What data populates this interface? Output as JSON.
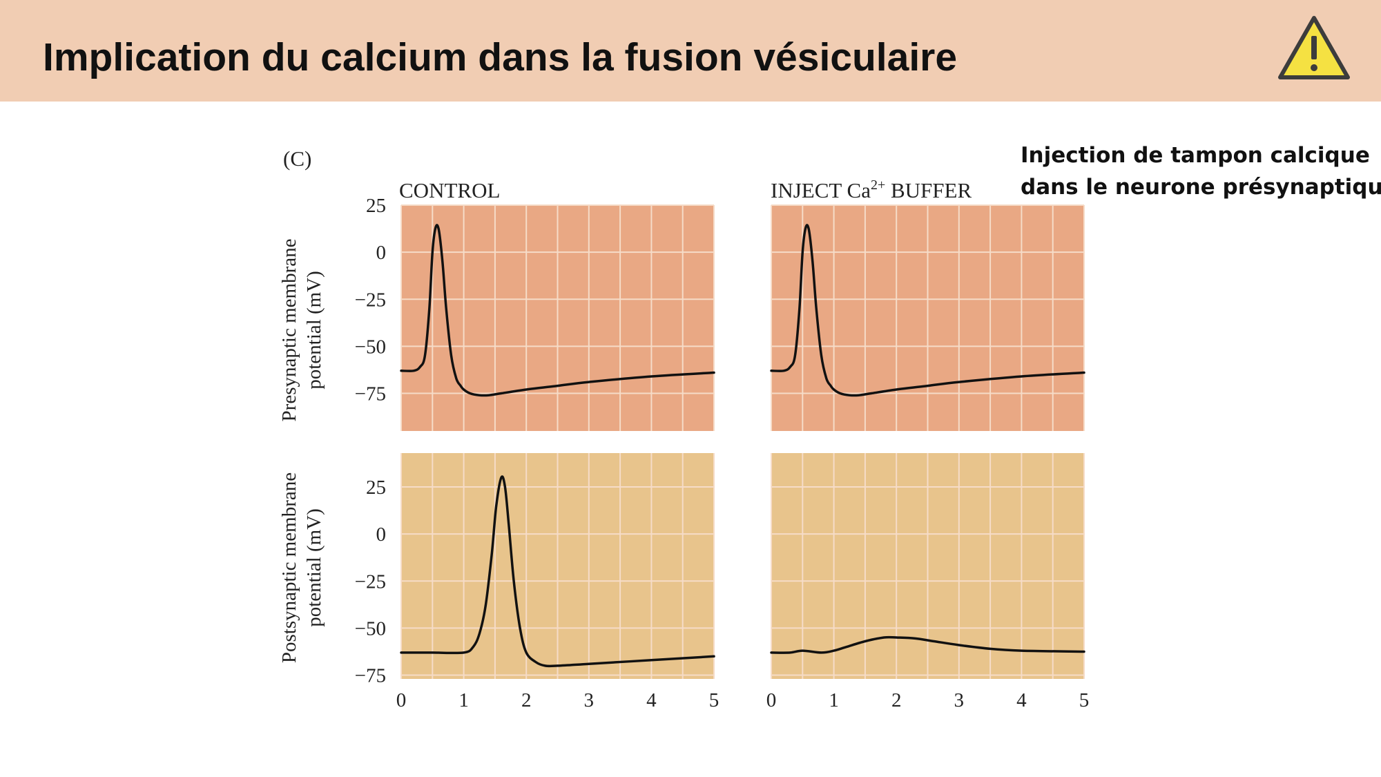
{
  "slide": {
    "title": "Implication du calcium dans la fusion vésiculaire",
    "annotation_line1": "Injection de tampon calcique",
    "annotation_line2": "dans le neurone présynaptique",
    "warning_icon": "warning-triangle-icon"
  },
  "chart_data": {
    "type": "line",
    "panel_label": "(C)",
    "columns": [
      {
        "title": "CONTROL",
        "title_base": "CONTROL",
        "title_sup": "",
        "title_tail": ""
      },
      {
        "title": "INJECT Ca2+ BUFFER",
        "title_base": "INJECT Ca",
        "title_sup": "2+",
        "title_tail": " BUFFER"
      }
    ],
    "rows": [
      {
        "ylabel_line1": "Presynaptic membrane",
        "ylabel_line2": "potential (mV)",
        "yticks": [
          25,
          0,
          -25,
          -50,
          -75
        ],
        "ylim": [
          -95,
          25
        ],
        "bg_color": "#e9a884"
      },
      {
        "ylabel_line1": "Postsynaptic membrane",
        "ylabel_line2": "potential (mV)",
        "yticks": [
          25,
          0,
          -25,
          -50,
          -75
        ],
        "ylim": [
          -77,
          43
        ],
        "bg_color": "#e8c48c"
      }
    ],
    "xticks": [
      0,
      1,
      2,
      3,
      4,
      5
    ],
    "xlim": [
      0,
      5
    ],
    "grid": true,
    "grid_color": "#f6dcc8",
    "line_color": "#111111",
    "panels": [
      {
        "row": 0,
        "col": 0,
        "x": [
          0,
          0.2,
          0.3,
          0.38,
          0.45,
          0.5,
          0.55,
          0.6,
          0.66,
          0.72,
          0.8,
          0.88,
          0.95,
          1.0,
          1.1,
          1.25,
          1.4,
          1.6,
          2.0,
          2.5,
          3.0,
          4.0,
          5.0
        ],
        "y": [
          -63,
          -63,
          -61,
          -55,
          -30,
          0,
          13,
          12,
          -5,
          -30,
          -55,
          -67,
          -71,
          -73,
          -75,
          -76,
          -76,
          -75,
          -73,
          -71,
          -69,
          -66,
          -64
        ]
      },
      {
        "row": 0,
        "col": 1,
        "x": [
          0,
          0.2,
          0.3,
          0.38,
          0.45,
          0.5,
          0.55,
          0.6,
          0.66,
          0.72,
          0.8,
          0.88,
          0.95,
          1.0,
          1.1,
          1.25,
          1.4,
          1.6,
          2.0,
          2.5,
          3.0,
          4.0,
          5.0
        ],
        "y": [
          -63,
          -63,
          -61,
          -55,
          -30,
          0,
          13,
          12,
          -5,
          -30,
          -55,
          -67,
          -71,
          -73,
          -75,
          -76,
          -76,
          -75,
          -73,
          -71,
          -69,
          -66,
          -64
        ]
      },
      {
        "row": 1,
        "col": 0,
        "x": [
          0,
          0.5,
          1.0,
          1.15,
          1.25,
          1.35,
          1.45,
          1.52,
          1.6,
          1.66,
          1.72,
          1.8,
          1.9,
          2.0,
          2.15,
          2.3,
          2.5,
          3.0,
          4.0,
          5.0
        ],
        "y": [
          -63,
          -63,
          -63,
          -60,
          -53,
          -38,
          -10,
          15,
          30,
          25,
          5,
          -25,
          -50,
          -63,
          -68,
          -70,
          -70,
          -69,
          -67,
          -65
        ]
      },
      {
        "row": 1,
        "col": 1,
        "x": [
          0,
          0.3,
          0.5,
          0.8,
          1.0,
          1.2,
          1.5,
          1.8,
          2.0,
          2.3,
          2.6,
          3.0,
          3.5,
          4.0,
          5.0
        ],
        "y": [
          -63,
          -63,
          -62,
          -63,
          -62,
          -60,
          -57,
          -55,
          -55,
          -55.5,
          -57,
          -59,
          -61,
          -62,
          -62.5
        ]
      }
    ]
  }
}
